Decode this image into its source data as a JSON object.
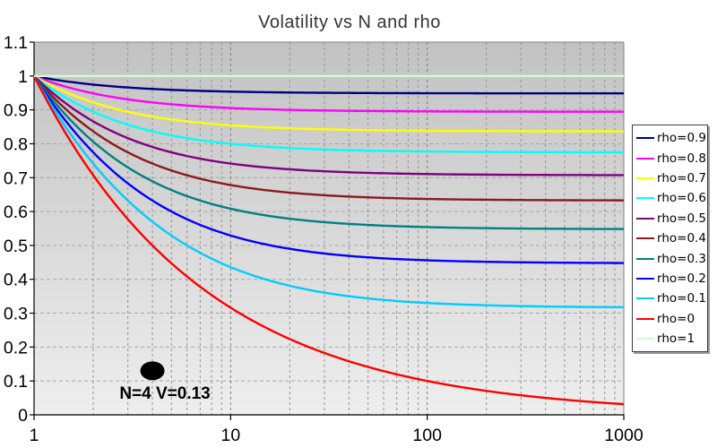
{
  "chart_data": {
    "type": "line",
    "title": "Volatility vs N and rho",
    "x_axis": {
      "scale": "log",
      "min": 1,
      "max": 1000,
      "tick_values": [
        1,
        10,
        100,
        1000
      ],
      "tick_labels": [
        "1",
        "10",
        "100",
        "1000"
      ],
      "minor_gridlines": "log decades 2-9"
    },
    "y_axis": {
      "min": 0,
      "max": 1.1,
      "step": 0.1,
      "tick_values": [
        0,
        0.1,
        0.2,
        0.3,
        0.4,
        0.5,
        0.6,
        0.7,
        0.8,
        0.9,
        1,
        1.1
      ],
      "tick_labels": [
        "0",
        "0.1",
        "0.2",
        "0.3",
        "0.4",
        "0.5",
        "0.6",
        "0.7",
        "0.8",
        "0.9",
        "1",
        "1.1"
      ]
    },
    "grid": {
      "horizontal": true,
      "vertical": true,
      "style": "dashed"
    },
    "legend": {
      "position": "right"
    },
    "x": [
      1,
      1.25,
      1.6,
      2,
      2.5,
      3.2,
      4,
      5,
      6.3,
      8,
      10,
      12.5,
      16,
      20,
      25,
      32,
      40,
      50,
      63,
      80,
      100,
      125,
      160,
      200,
      250,
      320,
      400,
      500,
      630,
      800,
      1000
    ],
    "series": [
      {
        "name": "rho=0.9",
        "rho": 0.9,
        "color": "#000080",
        "values": [
          1,
          0.9899,
          0.9811,
          0.9747,
          0.9695,
          0.965,
          0.9618,
          0.9592,
          0.957,
          0.9552,
          0.9539,
          0.9529,
          0.952,
          0.9513,
          0.9508,
          0.9503,
          0.95,
          0.9497,
          0.9495,
          0.9493,
          0.9492,
          0.9491,
          0.949,
          0.9489,
          0.9489,
          0.9489,
          0.9488,
          0.9488,
          0.9488,
          0.9488,
          0.9487
        ]
      },
      {
        "name": "rho=0.8",
        "rho": 0.8,
        "color": "#FF00FF",
        "values": [
          1,
          0.9798,
          0.9618,
          0.9487,
          0.9381,
          0.9287,
          0.922,
          0.9165,
          0.912,
          0.9083,
          0.9055,
          0.9033,
          0.9014,
          0.9,
          0.8989,
          0.8979,
          0.8972,
          0.8967,
          0.8962,
          0.8958,
          0.8955,
          0.8953,
          0.8951,
          0.895,
          0.8949,
          0.8948,
          0.8947,
          0.8947,
          0.8946,
          0.8946,
          0.8945
        ]
      },
      {
        "name": "rho=0.7",
        "rho": 0.7,
        "color": "#FFFF00",
        "values": [
          1,
          0.9695,
          0.9421,
          0.922,
          0.9055,
          0.8909,
          0.8803,
          0.8718,
          0.8646,
          0.8588,
          0.8544,
          0.8509,
          0.8478,
          0.8456,
          0.8438,
          0.8422,
          0.8411,
          0.8402,
          0.8395,
          0.8389,
          0.8384,
          0.8381,
          0.8378,
          0.8376,
          0.8374,
          0.8372,
          0.8371,
          0.837,
          0.8369,
          0.8369,
          0.8368
        ]
      },
      {
        "name": "rho=0.6",
        "rho": 0.6,
        "color": "#00FFFF",
        "values": [
          1,
          0.9592,
          0.922,
          0.8944,
          0.8718,
          0.8515,
          0.8367,
          0.8246,
          0.8146,
          0.8062,
          0.8,
          0.795,
          0.7906,
          0.7874,
          0.7848,
          0.7826,
          0.781,
          0.7797,
          0.7787,
          0.7778,
          0.7772,
          0.7767,
          0.7762,
          0.7759,
          0.7756,
          0.7754,
          0.7753,
          0.7751,
          0.775,
          0.7749,
          0.7749
        ]
      },
      {
        "name": "rho=0.5",
        "rho": 0.5,
        "color": "#800080",
        "values": [
          1,
          0.9487,
          0.9014,
          0.866,
          0.8367,
          0.8101,
          0.7906,
          0.7746,
          0.7612,
          0.75,
          0.7416,
          0.7348,
          0.7289,
          0.7246,
          0.7211,
          0.7181,
          0.7159,
          0.7141,
          0.7127,
          0.7115,
          0.7106,
          0.7099,
          0.7093,
          0.7089,
          0.7085,
          0.7082,
          0.708,
          0.7078,
          0.7077,
          0.7075,
          0.7075
        ]
      },
      {
        "name": "rho=0.4",
        "rho": 0.4,
        "color": "#8B1A1A",
        "values": [
          1,
          0.9381,
          0.8803,
          0.8367,
          0.8,
          0.7665,
          0.7416,
          0.7211,
          0.7037,
          0.6892,
          0.6782,
          0.6693,
          0.6614,
          0.6557,
          0.6512,
          0.6471,
          0.6442,
          0.6419,
          0.6399,
          0.6384,
          0.6372,
          0.6362,
          0.6354,
          0.6348,
          0.6344,
          0.6339,
          0.6336,
          0.6334,
          0.6332,
          0.6331,
          0.6329
        ]
      },
      {
        "name": "rho=0.3",
        "rho": 0.3,
        "color": "#008080",
        "values": [
          1,
          0.9274,
          0.8588,
          0.8062,
          0.7616,
          0.7202,
          0.6892,
          0.6633,
          0.6412,
          0.6225,
          0.6083,
          0.5967,
          0.5863,
          0.5788,
          0.5727,
          0.5673,
          0.5635,
          0.5604,
          0.5578,
          0.5556,
          0.5541,
          0.5528,
          0.5517,
          0.5509,
          0.5503,
          0.5497,
          0.5493,
          0.549,
          0.5487,
          0.5485,
          0.5484
        ]
      },
      {
        "name": "rho=0.2",
        "rho": 0.2,
        "color": "#0000FF",
        "values": [
          1,
          0.9165,
          0.8367,
          0.7746,
          0.7211,
          0.6708,
          0.6325,
          0.6,
          0.5718,
          0.5477,
          0.5292,
          0.5138,
          0.5,
          0.4899,
          0.4817,
          0.4743,
          0.469,
          0.4648,
          0.4612,
          0.4583,
          0.4561,
          0.4543,
          0.4528,
          0.4517,
          0.4508,
          0.45,
          0.4494,
          0.449,
          0.4486,
          0.4483,
          0.4481
        ]
      },
      {
        "name": "rho=0.1",
        "rho": 0.1,
        "color": "#00CCFF",
        "values": [
          1,
          0.9055,
          0.8139,
          0.7416,
          0.6782,
          0.6175,
          0.5701,
          0.5292,
          0.4928,
          0.461,
          0.4359,
          0.4147,
          0.3953,
          0.3808,
          0.3688,
          0.358,
          0.35,
          0.3435,
          0.3381,
          0.3335,
          0.3302,
          0.3274,
          0.325,
          0.3233,
          0.3219,
          0.3206,
          0.3198,
          0.3191,
          0.3185,
          0.318,
          0.3177
        ]
      },
      {
        "name": "rho=0",
        "rho": 0,
        "color": "#FF0000",
        "values": [
          1,
          0.8944,
          0.7906,
          0.7071,
          0.6325,
          0.559,
          0.5,
          0.4472,
          0.3984,
          0.3536,
          0.3162,
          0.2828,
          0.25,
          0.2236,
          0.2,
          0.1768,
          0.1581,
          0.1414,
          0.126,
          0.1118,
          0.1,
          0.0894,
          0.0791,
          0.0707,
          0.0632,
          0.0559,
          0.05,
          0.0447,
          0.0398,
          0.0354,
          0.0316
        ]
      },
      {
        "name": "rho=1",
        "rho": 1,
        "color": "#CCFFCC",
        "values": [
          1,
          1,
          1,
          1,
          1,
          1,
          1,
          1,
          1,
          1,
          1,
          1,
          1,
          1,
          1,
          1,
          1,
          1,
          1,
          1,
          1,
          1,
          1,
          1,
          1,
          1,
          1,
          1,
          1,
          1,
          1
        ]
      }
    ],
    "annotation": {
      "label": "N=4  V=0.13",
      "marker": {
        "shape": "ellipse",
        "color": "#000000",
        "x": 4,
        "y": 0.13
      }
    }
  },
  "styles": {
    "plot_bg_top": "#c2c2c2",
    "plot_bg_bottom": "#eeeeee",
    "plot_border": "#808080",
    "axis_color": "#000000",
    "grid_minor_v": "#949494",
    "grid_major_v": "#7d7d7d",
    "grid_h": "#a6a6a6",
    "title_color": "#333333"
  }
}
